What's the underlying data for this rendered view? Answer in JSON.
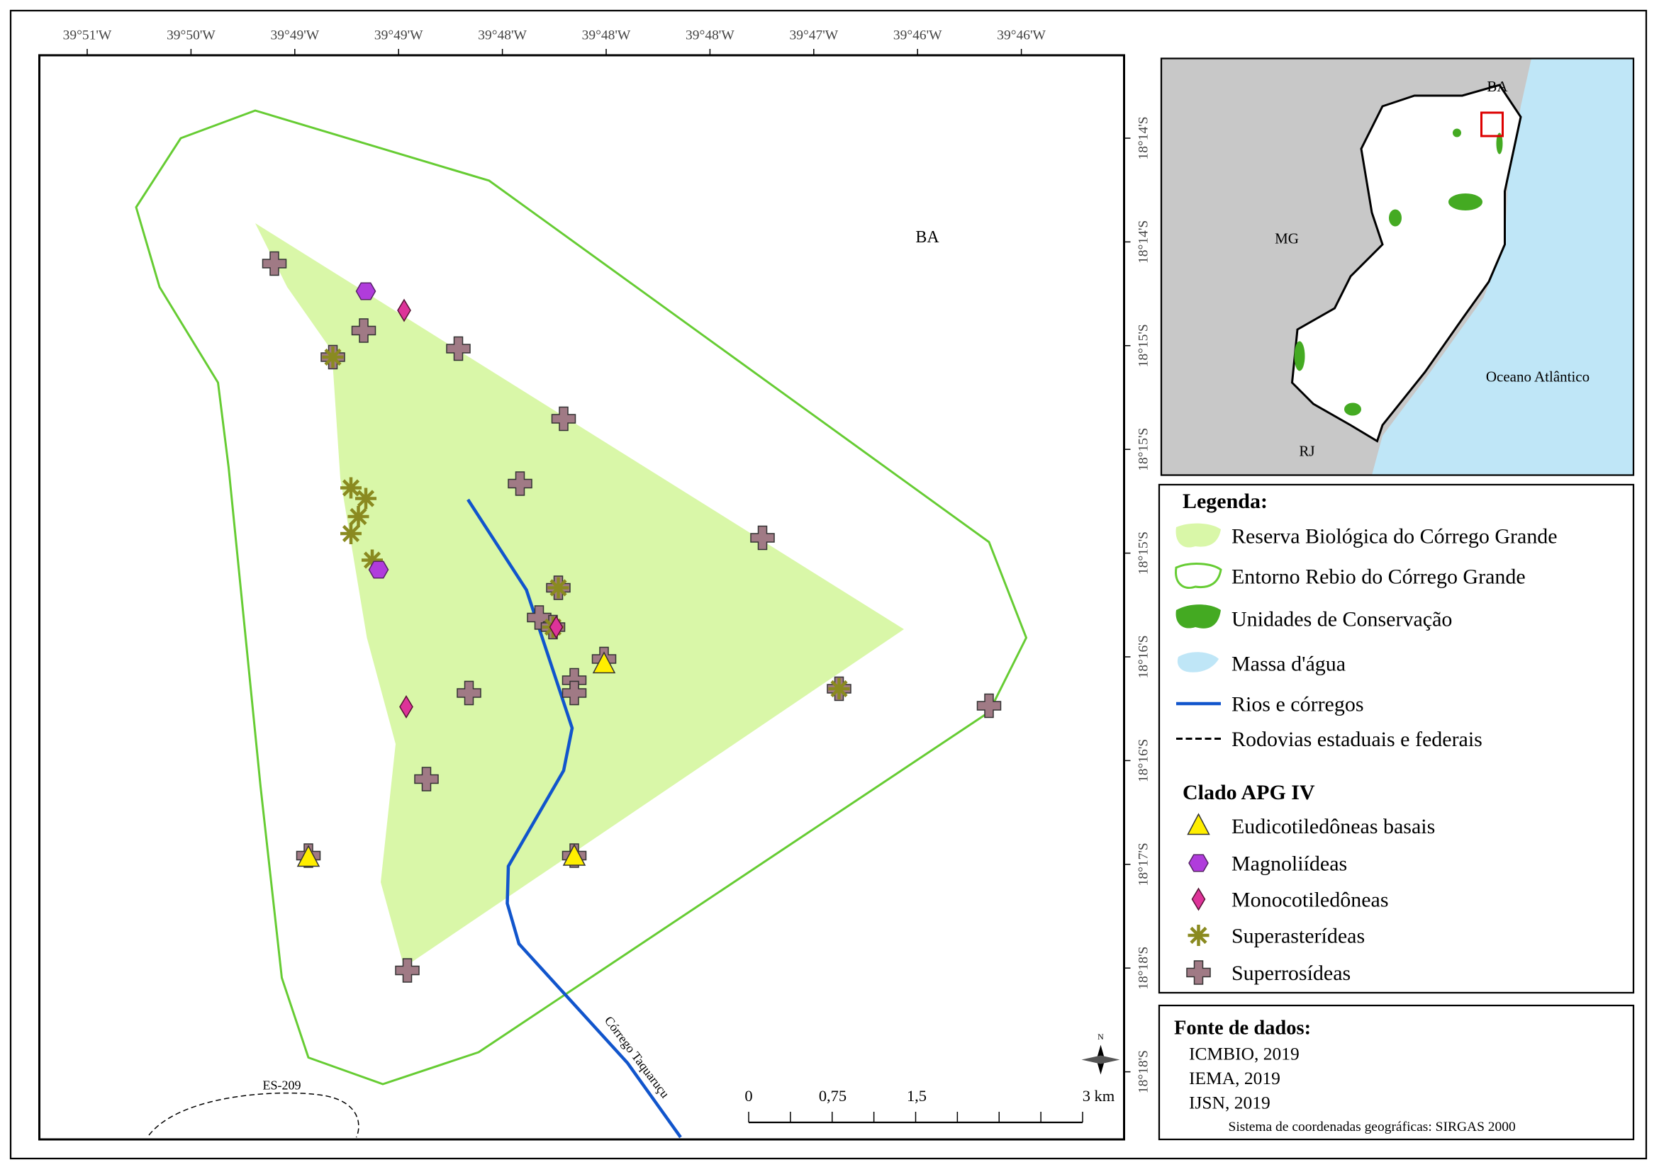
{
  "map": {
    "lon_ticks": [
      "39°51'W",
      "39°50'W",
      "39°49'W",
      "39°49'W",
      "39°48'W",
      "39°48'W",
      "39°48'W",
      "39°47'W",
      "39°46'W",
      "39°46'W"
    ],
    "lat_ticks": [
      "18°14'S",
      "18°14'S",
      "18°15'S",
      "18°15'S",
      "18°15'S",
      "18°16'S",
      "18°16'S",
      "18°17'S",
      "18°18'S",
      "18°18'S"
    ],
    "state": "BA",
    "road": "ES-209",
    "stream": "Córrego Taquaruçu",
    "north": "N",
    "scale": [
      "0",
      "0,75",
      "1,5",
      "3 km"
    ]
  },
  "inset": {
    "labels": [
      "BA",
      "MG",
      "RJ",
      "Oceano Atlântico"
    ]
  },
  "legend": {
    "title": "Legenda:",
    "items": [
      "Reserva Biológica do Córrego Grande",
      "Entorno Rebio do Córrego Grande",
      "Unidades de Conservação",
      "Massa d'água",
      "Rios e córregos",
      "Rodovias estaduais e federais"
    ],
    "clade_title": "Clado APG IV",
    "clades": [
      "Eudicotiledôneas basais",
      "Magnoliídeas",
      "Monocotiledôneas",
      "Superasterídeas",
      "Superrosídeas"
    ]
  },
  "sources": {
    "title": "Fonte de dados:",
    "items": [
      "ICMBIO, 2019",
      "IEMA, 2019",
      "IJSN, 2019"
    ],
    "crs": "Sistema de coordenadas geográficas: SIRGAS 2000"
  }
}
